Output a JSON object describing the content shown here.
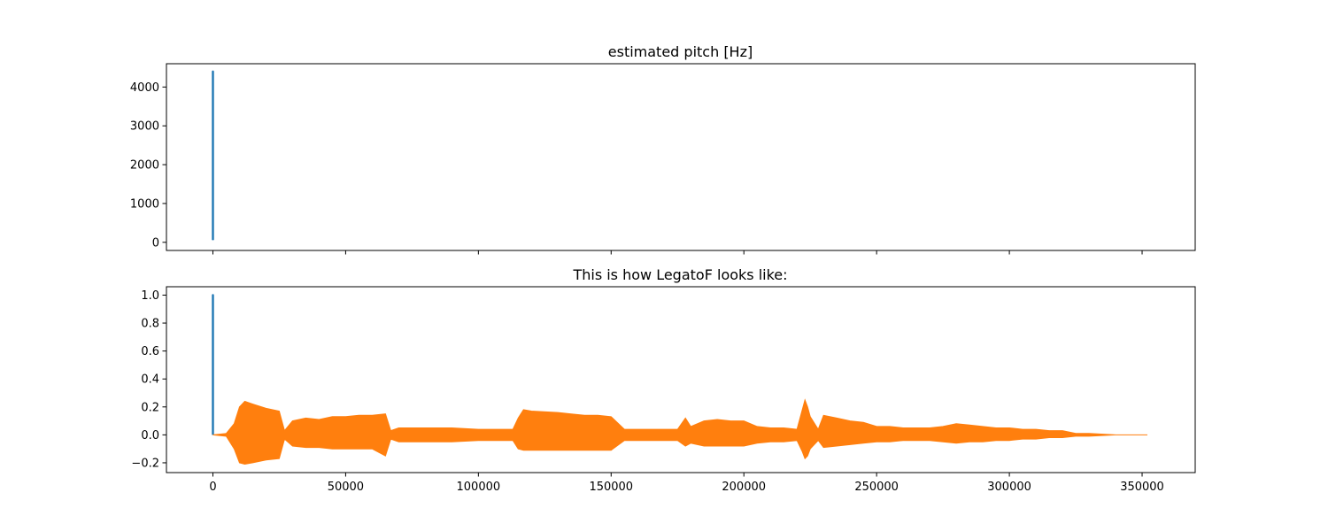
{
  "chart_data": [
    {
      "type": "line",
      "title": "estimated pitch [Hz]",
      "xlabel": "",
      "ylabel": "",
      "xlim": [
        -17500,
        370000
      ],
      "ylim": [
        -210,
        4600
      ],
      "xticks": [
        0,
        50000,
        100000,
        150000,
        200000,
        250000,
        300000,
        350000
      ],
      "xtick_labels_visible": false,
      "yticks": [
        0,
        1000,
        2000,
        3000,
        4000
      ],
      "ytick_labels": [
        "0",
        "1000",
        "2000",
        "3000",
        "4000"
      ],
      "grid": false,
      "series": [
        {
          "color": "#1f77b4",
          "x": [
            0,
            0,
            0,
            0,
            0,
            0
          ],
          "y": [
            60,
            4400,
            600,
            4350,
            80,
            4380
          ]
        }
      ]
    },
    {
      "type": "line",
      "title": "This is how LegatoF looks like:",
      "xlabel": "",
      "ylabel": "",
      "xlim": [
        -17500,
        370000
      ],
      "ylim": [
        -0.27,
        1.06
      ],
      "xticks": [
        0,
        50000,
        100000,
        150000,
        200000,
        250000,
        300000,
        350000
      ],
      "xtick_labels": [
        "0",
        "50000",
        "100000",
        "150000",
        "200000",
        "250000",
        "300000",
        "350000"
      ],
      "yticks": [
        -0.2,
        0.0,
        0.2,
        0.4,
        0.6,
        0.8,
        1.0
      ],
      "ytick_labels": [
        "−0.2",
        "0.0",
        "0.2",
        "0.4",
        "0.6",
        "0.8",
        "1.0"
      ],
      "grid": false,
      "series": [
        {
          "color": "#1f77b4",
          "x": [
            0,
            0,
            0,
            0
          ],
          "y": [
            0.0,
            1.0,
            0.25,
            0.99
          ]
        },
        {
          "color": "#ff7f0e",
          "rendering": "audio waveform envelope (upper / lower amplitude)",
          "x": [
            0,
            5000,
            8000,
            10000,
            12000,
            15000,
            20000,
            25000,
            27000,
            30000,
            35000,
            40000,
            45000,
            50000,
            55000,
            60000,
            65000,
            67000,
            70000,
            80000,
            90000,
            100000,
            110000,
            113000,
            115000,
            117000,
            120000,
            130000,
            135000,
            140000,
            145000,
            150000,
            155000,
            160000,
            170000,
            175000,
            178000,
            180000,
            185000,
            190000,
            195000,
            200000,
            205000,
            210000,
            215000,
            220000,
            222000,
            223000,
            224000,
            225000,
            228000,
            230000,
            235000,
            240000,
            245000,
            250000,
            255000,
            260000,
            265000,
            270000,
            275000,
            280000,
            285000,
            290000,
            295000,
            300000,
            305000,
            310000,
            315000,
            320000,
            325000,
            330000,
            340000,
            350000,
            352000
          ],
          "upper": [
            0.0,
            0.01,
            0.08,
            0.2,
            0.24,
            0.22,
            0.19,
            0.17,
            0.03,
            0.1,
            0.12,
            0.11,
            0.13,
            0.13,
            0.14,
            0.14,
            0.15,
            0.03,
            0.05,
            0.05,
            0.05,
            0.04,
            0.04,
            0.04,
            0.12,
            0.18,
            0.17,
            0.16,
            0.15,
            0.14,
            0.14,
            0.13,
            0.04,
            0.04,
            0.04,
            0.04,
            0.12,
            0.06,
            0.1,
            0.11,
            0.1,
            0.1,
            0.06,
            0.05,
            0.05,
            0.04,
            0.18,
            0.25,
            0.2,
            0.13,
            0.04,
            0.14,
            0.12,
            0.1,
            0.09,
            0.06,
            0.06,
            0.05,
            0.05,
            0.05,
            0.06,
            0.08,
            0.07,
            0.06,
            0.05,
            0.05,
            0.04,
            0.04,
            0.03,
            0.03,
            0.01,
            0.01,
            0.0,
            0.0,
            0.0
          ],
          "lower": [
            0.0,
            -0.01,
            -0.1,
            -0.2,
            -0.21,
            -0.2,
            -0.18,
            -0.17,
            -0.03,
            -0.08,
            -0.09,
            -0.09,
            -0.1,
            -0.1,
            -0.1,
            -0.1,
            -0.15,
            -0.03,
            -0.05,
            -0.05,
            -0.05,
            -0.04,
            -0.04,
            -0.04,
            -0.1,
            -0.11,
            -0.11,
            -0.11,
            -0.11,
            -0.11,
            -0.11,
            -0.11,
            -0.04,
            -0.04,
            -0.04,
            -0.04,
            -0.08,
            -0.06,
            -0.08,
            -0.08,
            -0.08,
            -0.08,
            -0.06,
            -0.05,
            -0.05,
            -0.04,
            -0.12,
            -0.17,
            -0.15,
            -0.1,
            -0.04,
            -0.09,
            -0.08,
            -0.07,
            -0.06,
            -0.05,
            -0.05,
            -0.04,
            -0.04,
            -0.04,
            -0.05,
            -0.06,
            -0.05,
            -0.05,
            -0.04,
            -0.04,
            -0.03,
            -0.03,
            -0.02,
            -0.02,
            -0.01,
            -0.01,
            0.0,
            0.0,
            0.0
          ]
        }
      ]
    }
  ]
}
